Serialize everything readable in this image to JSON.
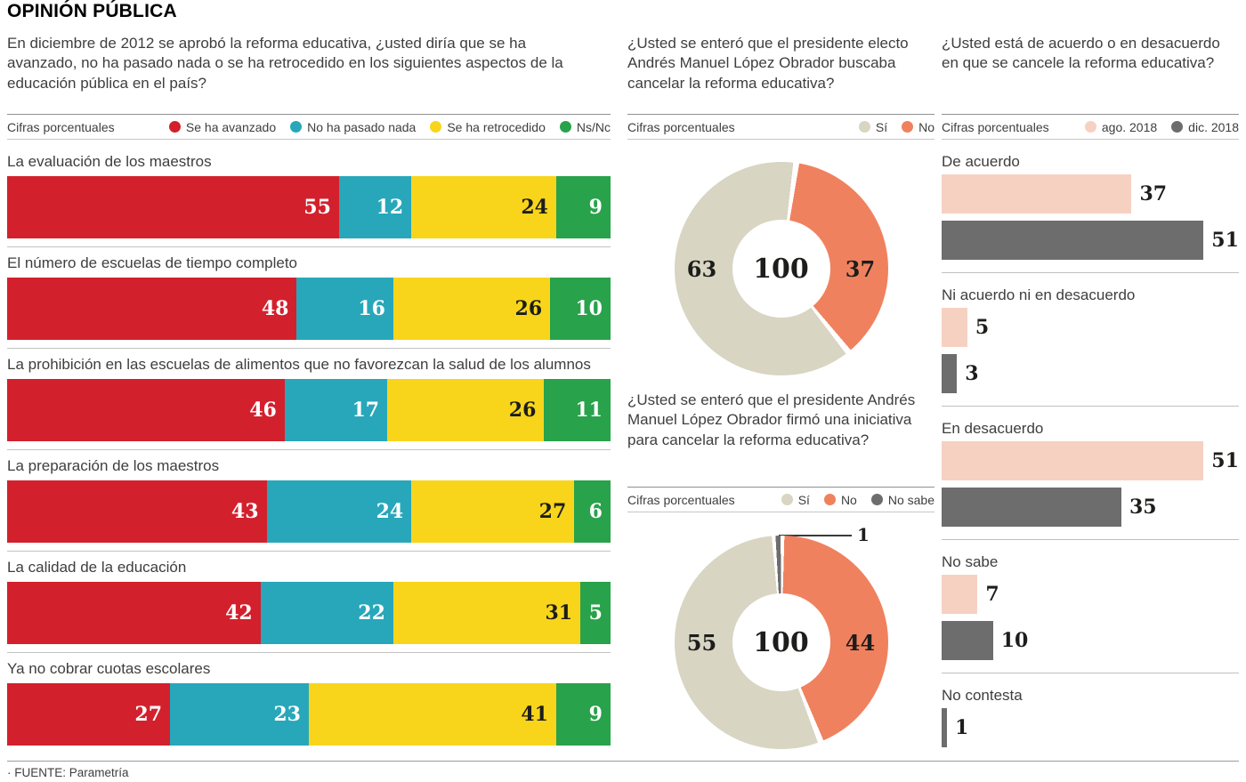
{
  "title": "OPINIÓN PÚBLICA",
  "footer": {
    "source": "· FUENTE: Parametría"
  },
  "colors": {
    "red": "#d3202d",
    "teal": "#28a7ba",
    "yellow": "#f8d51b",
    "green": "#28a24b",
    "beige": "#d8d5c3",
    "salmon": "#f0815f",
    "pink": "#f6d1c1",
    "dark_gray": "#6e6d6d",
    "text": "#3e3e3d",
    "number_dark": "#1d1d1b"
  },
  "panels": {
    "left": {
      "question": "En diciembre de 2012 se aprobó la reforma educativa, ¿usted diría que se ha avanzado, no ha pasado nada o se ha retrocedido en los siguientes aspectos de la educación pública en el país?",
      "units_label": "Cifras porcentuales"
    },
    "mid_top": {
      "question": "¿Usted se enteró que el presidente electo Andrés Manuel López Obrador buscaba cancelar la reforma educativa?",
      "units_label": "Cifras porcentuales"
    },
    "mid_bottom": {
      "question": "¿Usted se enteró que el presidente Andrés Manuel López Obrador firmó una iniciativa para cancelar la reforma educativa?",
      "units_label": "Cifras porcentuales"
    },
    "right": {
      "question": "¿Usted está de acuerdo o en desacuerdo en que se cancele la reforma educativa?",
      "units_label": "Cifras porcentuales"
    }
  },
  "chart_data": [
    {
      "type": "bar",
      "variant": "horizontal-stacked",
      "title": "En diciembre de 2012 se aprobó la reforma educativa, ¿usted diría que se ha avanzado, no ha pasado nada o se ha retrocedido en los siguientes aspectos de la educación pública en el país?",
      "unit": "percent",
      "categories": [
        "La evaluación de los maestros",
        "El número de escuelas de tiempo completo",
        "La prohibición en las escuelas de alimentos que no favorezcan la salud de los alumnos",
        "La preparación de los maestros",
        "La calidad de la educación",
        "Ya no cobrar cuotas escolares"
      ],
      "series": [
        {
          "name": "Se ha avanzado",
          "values": [
            55,
            48,
            46,
            43,
            42,
            27
          ]
        },
        {
          "name": "No ha pasado nada",
          "values": [
            12,
            16,
            17,
            24,
            22,
            23
          ]
        },
        {
          "name": "Se ha retrocedido",
          "values": [
            24,
            26,
            26,
            27,
            31,
            41
          ]
        },
        {
          "name": "Ns/Nc",
          "values": [
            9,
            10,
            11,
            6,
            5,
            9
          ]
        }
      ],
      "colors": [
        "#d3202d",
        "#28a7ba",
        "#f8d51b",
        "#28a24b"
      ],
      "value_colors": [
        "#ffffff",
        "#ffffff",
        "#1d1d1b",
        "#ffffff"
      ],
      "xlim": [
        0,
        100
      ],
      "grid": false,
      "legend_position": "top-right"
    },
    {
      "type": "pie",
      "variant": "donut",
      "title": "¿Usted se enteró que el presidente electo Andrés Manuel López Obrador buscaba cancelar la reforma educativa?",
      "unit": "percent",
      "labels": [
        "Sí",
        "No"
      ],
      "values": [
        63,
        37
      ],
      "colors": [
        "#d8d5c3",
        "#f0815f"
      ],
      "center_label": "100",
      "layout": {
        "start_deg": 8,
        "draw_order": [
          1,
          0
        ],
        "legend_position": "top-right"
      }
    },
    {
      "type": "pie",
      "variant": "donut",
      "title": "¿Usted se enteró que el presidente Andrés Manuel López Obrador firmó una iniciativa para cancelar la reforma educativa?",
      "unit": "percent",
      "labels": [
        "Sí",
        "No",
        "No sabe"
      ],
      "values": [
        55,
        44,
        1
      ],
      "colors": [
        "#d8d5c3",
        "#f0815f",
        "#6e6d6d"
      ],
      "center_label": "100",
      "callout_value": "1",
      "layout": {
        "start_deg": 0,
        "draw_order": [
          1,
          0,
          2
        ],
        "legend_position": "top-right"
      }
    },
    {
      "type": "bar",
      "variant": "horizontal-grouped",
      "title": "¿Usted está de acuerdo o en desacuerdo en que se cancele la reforma educativa?",
      "unit": "percent",
      "categories": [
        "De acuerdo",
        "Ni acuerdo ni en desacuerdo",
        "En desacuerdo",
        "No sabe",
        "No contesta"
      ],
      "series": [
        {
          "name": "ago. 2018",
          "values": [
            37,
            5,
            51,
            7,
            null
          ]
        },
        {
          "name": "dic. 2018",
          "values": [
            51,
            3,
            35,
            10,
            1
          ]
        }
      ],
      "colors": [
        "#f6d1c1",
        "#6e6d6d"
      ],
      "xlim": [
        0,
        57
      ],
      "grid": false,
      "legend_position": "top-right"
    }
  ]
}
